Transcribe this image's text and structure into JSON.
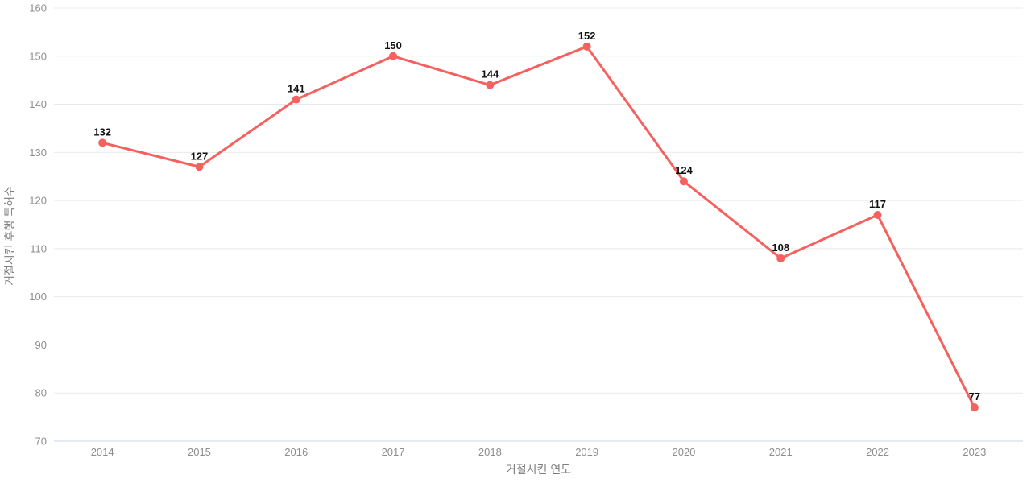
{
  "chart_data": {
    "type": "line",
    "title": "",
    "categories": [
      "2014",
      "2015",
      "2016",
      "2017",
      "2018",
      "2019",
      "2020",
      "2021",
      "2022",
      "2023"
    ],
    "series": [
      {
        "name": "거절시킨 후행 특허수",
        "values": [
          132,
          127,
          141,
          150,
          144,
          152,
          124,
          108,
          117,
          77
        ]
      }
    ],
    "xlabel": "거절시킨 연도",
    "ylabel": "거절시킨 후행 특허수",
    "ylim": [
      70,
      160
    ],
    "ytick_step": 10,
    "grid": "horizontal-only",
    "legend": "none",
    "point_labels_shown": true
  },
  "colors": {
    "line": "#f4615e",
    "marker": "#f4615e",
    "gridline": "#e9e9e9",
    "baseline": "#c9d4e8",
    "tick_label": "#8e8e8e",
    "axis_title": "#7f7f7f",
    "value_label": "#111111",
    "background": "#ffffff"
  }
}
